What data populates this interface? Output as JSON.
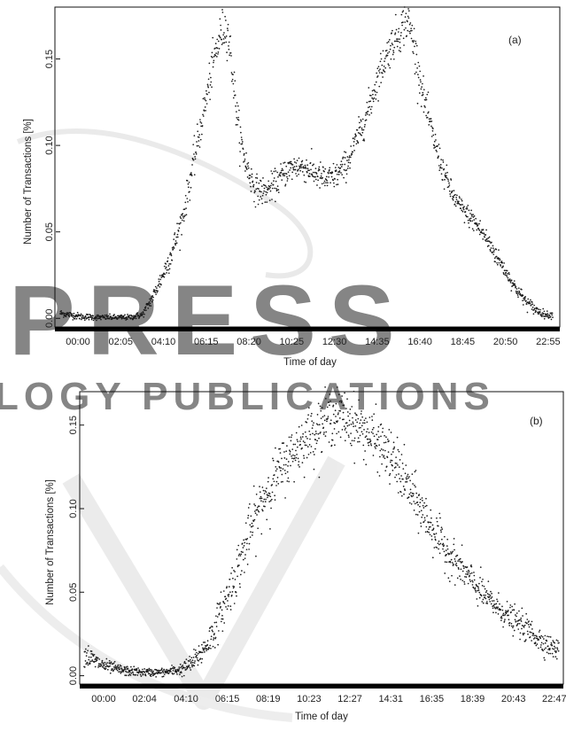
{
  "chart_data": [
    {
      "type": "scatter",
      "panel_label": "(a)",
      "xlabel": "Time of day",
      "ylabel": "Number of Transactions [%]",
      "x_unit": "minutes",
      "xlim": [
        0,
        1440
      ],
      "ylim": [
        -0.005,
        0.18
      ],
      "y_ticks": [
        0.0,
        0.05,
        0.1,
        0.15
      ],
      "y_tick_labels": [
        "0.00",
        "0.05",
        "0.10",
        "0.15"
      ],
      "x_ticks": [
        0,
        125,
        250,
        375,
        500,
        625,
        750,
        875,
        1000,
        1125,
        1250,
        1375
      ],
      "x_tick_labels": [
        "00:00",
        "02:05",
        "04:10",
        "06:15",
        "08:20",
        "10:25",
        "12:30",
        "14:35",
        "16:40",
        "18:45",
        "20:50",
        "22:55"
      ],
      "point_color": "#1a1a1a",
      "profile": {
        "x": [
          0,
          60,
          120,
          200,
          240,
          270,
          300,
          330,
          360,
          390,
          420,
          450,
          470,
          480,
          490,
          500,
          510,
          525,
          545,
          570,
          600,
          630,
          660,
          690,
          720,
          750,
          780,
          810,
          840,
          870,
          900,
          930,
          960,
          990,
          1010,
          1020,
          1035,
          1060,
          1090,
          1120,
          1150,
          1180,
          1210,
          1240,
          1270,
          1300,
          1330,
          1360,
          1390,
          1420,
          1440
        ],
        "y": [
          0.003,
          0.001,
          0.0005,
          0.0005,
          0.002,
          0.012,
          0.025,
          0.04,
          0.06,
          0.09,
          0.12,
          0.15,
          0.165,
          0.168,
          0.166,
          0.15,
          0.13,
          0.105,
          0.088,
          0.075,
          0.073,
          0.078,
          0.085,
          0.088,
          0.087,
          0.083,
          0.08,
          0.083,
          0.09,
          0.105,
          0.12,
          0.14,
          0.155,
          0.165,
          0.172,
          0.17,
          0.158,
          0.13,
          0.105,
          0.085,
          0.07,
          0.062,
          0.056,
          0.048,
          0.038,
          0.028,
          0.018,
          0.01,
          0.005,
          0.002,
          0.002
        ],
        "noise": [
          0.001,
          0.001,
          0.0008,
          0.0008,
          0.001,
          0.002,
          0.003,
          0.004,
          0.004,
          0.005,
          0.005,
          0.006,
          0.006,
          0.006,
          0.006,
          0.006,
          0.006,
          0.005,
          0.005,
          0.004,
          0.004,
          0.004,
          0.004,
          0.004,
          0.004,
          0.004,
          0.004,
          0.004,
          0.004,
          0.004,
          0.005,
          0.005,
          0.005,
          0.006,
          0.006,
          0.006,
          0.006,
          0.005,
          0.004,
          0.004,
          0.003,
          0.003,
          0.003,
          0.003,
          0.003,
          0.002,
          0.002,
          0.002,
          0.0015,
          0.001,
          0.001
        ]
      }
    },
    {
      "type": "scatter",
      "panel_label": "(b)",
      "xlabel": "Time of day",
      "ylabel": "Number of Transactions [%]",
      "x_unit": "minutes",
      "xlim": [
        0,
        1440
      ],
      "ylim": [
        -0.005,
        0.17
      ],
      "y_ticks": [
        0.0,
        0.05,
        0.1,
        0.15
      ],
      "y_tick_labels": [
        "0.00",
        "0.05",
        "0.10",
        "0.15"
      ],
      "x_ticks": [
        0,
        124,
        250,
        375,
        499,
        623,
        747,
        871,
        995,
        1119,
        1243,
        1367
      ],
      "x_tick_labels": [
        "00:00",
        "02:04",
        "04:10",
        "06:15",
        "08:19",
        "10:23",
        "12:27",
        "14:31",
        "16:35",
        "18:39",
        "20:43",
        "22:47"
      ],
      "point_color": "#1a1a1a",
      "profile": {
        "x": [
          0,
          30,
          60,
          120,
          180,
          240,
          300,
          330,
          360,
          390,
          420,
          450,
          480,
          510,
          540,
          570,
          600,
          630,
          660,
          690,
          720,
          750,
          780,
          810,
          840,
          870,
          900,
          930,
          960,
          990,
          1020,
          1050,
          1080,
          1110,
          1140,
          1170,
          1200,
          1230,
          1260,
          1290,
          1320,
          1350,
          1380,
          1410,
          1440
        ],
        "y": [
          0.013,
          0.009,
          0.006,
          0.003,
          0.002,
          0.002,
          0.004,
          0.008,
          0.015,
          0.025,
          0.04,
          0.055,
          0.072,
          0.09,
          0.105,
          0.115,
          0.125,
          0.132,
          0.14,
          0.145,
          0.15,
          0.155,
          0.155,
          0.152,
          0.148,
          0.143,
          0.138,
          0.13,
          0.122,
          0.11,
          0.1,
          0.09,
          0.08,
          0.072,
          0.065,
          0.058,
          0.051,
          0.045,
          0.04,
          0.035,
          0.031,
          0.027,
          0.022,
          0.018,
          0.015
        ],
        "noise": [
          0.004,
          0.003,
          0.002,
          0.0015,
          0.0012,
          0.0012,
          0.002,
          0.003,
          0.004,
          0.005,
          0.006,
          0.007,
          0.008,
          0.008,
          0.008,
          0.008,
          0.008,
          0.008,
          0.008,
          0.008,
          0.008,
          0.008,
          0.008,
          0.008,
          0.008,
          0.008,
          0.008,
          0.008,
          0.008,
          0.007,
          0.007,
          0.007,
          0.006,
          0.006,
          0.005,
          0.005,
          0.005,
          0.004,
          0.004,
          0.004,
          0.004,
          0.004,
          0.004,
          0.003,
          0.003
        ]
      }
    }
  ],
  "watermark": {
    "lines": [
      "PRESS",
      "LOGY PUBLICATIONS"
    ],
    "color": "#c8c8c8"
  }
}
